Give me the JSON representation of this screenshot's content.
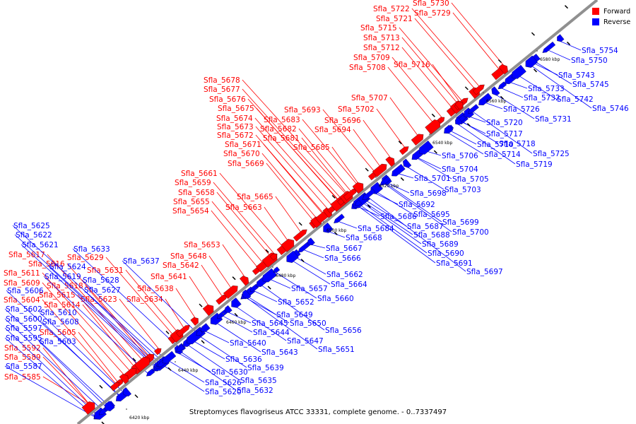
{
  "caption": "Streptomyces flavogriseus ATCC 33331, complete genome. - 0..7337497",
  "legend": [
    {
      "label": "Forward",
      "color": "#ff0000"
    },
    {
      "label": "Reverse",
      "color": "#0000ff"
    }
  ],
  "colors": {
    "forward": "#ff0000",
    "reverse": "#0000ff",
    "backbone": "#8c8c8c"
  },
  "scale_ticks": [
    {
      "label": "6420 kbp"
    },
    {
      "label": "6440 kbp"
    },
    {
      "label": "6460 kbp"
    },
    {
      "label": "6480 kbp"
    },
    {
      "label": "6500 kbp"
    },
    {
      "label": "6520 kbp"
    },
    {
      "label": "6540 kbp"
    },
    {
      "label": "6560 kbp"
    },
    {
      "label": "6580 kbp"
    }
  ],
  "forward_genes": [
    "Sfla_5585",
    "Sfla_5589",
    "Sfla_5592",
    "Sfla_5605",
    "Sfla_5614",
    "Sfla_5615",
    "Sfla_5618",
    "Sfla_5611",
    "Sfla_5609",
    "Sfla_5604",
    "Sfla_5616",
    "Sfla_5617",
    "Sfla_5623",
    "Sfla_5629",
    "Sfla_5631",
    "Sfla_5634",
    "Sfla_5638",
    "Sfla_5641",
    "Sfla_5642",
    "Sfla_5648",
    "Sfla_5653",
    "Sfla_5654",
    "Sfla_5655",
    "Sfla_5658",
    "Sfla_5659",
    "Sfla_5661",
    "Sfla_5663",
    "Sfla_5665",
    "Sfla_5669",
    "Sfla_5670",
    "Sfla_5671",
    "Sfla_5672",
    "Sfla_5673",
    "Sfla_5674",
    "Sfla_5675",
    "Sfla_5676",
    "Sfla_5677",
    "Sfla_5678",
    "Sfla_5681",
    "Sfla_5682",
    "Sfla_5683",
    "Sfla_5685",
    "Sfla_5693",
    "Sfla_5694",
    "Sfla_5696",
    "Sfla_5702",
    "Sfla_5707",
    "Sfla_5708",
    "Sfla_5709",
    "Sfla_5712",
    "Sfla_5713",
    "Sfla_5715",
    "Sfla_5716",
    "Sfla_5721",
    "Sfla_5722",
    "Sfla_5729",
    "Sfla_5730"
  ],
  "reverse_genes": [
    "Sfla_5587",
    "Sfla_5595",
    "Sfla_5597",
    "Sfla_5600",
    "Sfla_5602",
    "Sfla_5603",
    "Sfla_5606",
    "Sfla_5608",
    "Sfla_5610",
    "Sfla_5619",
    "Sfla_5621",
    "Sfla_5622",
    "Sfla_5624",
    "Sfla_5625",
    "Sfla_5627",
    "Sfla_5628",
    "Sfla_5633",
    "Sfla_5637",
    "Sfla_5620",
    "Sfla_5626",
    "Sfla_5630",
    "Sfla_5632",
    "Sfla_5635",
    "Sfla_5636",
    "Sfla_5639",
    "Sfla_5640",
    "Sfla_5643",
    "Sfla_5644",
    "Sfla_5645",
    "Sfla_5647",
    "Sfla_5649",
    "Sfla_5650",
    "Sfla_5651",
    "Sfla_5652",
    "Sfla_5656",
    "Sfla_5657",
    "Sfla_5660",
    "Sfla_5662",
    "Sfla_5664",
    "Sfla_5666",
    "Sfla_5667",
    "Sfla_5668",
    "Sfla_5684",
    "Sfla_5686",
    "Sfla_5687",
    "Sfla_5688",
    "Sfla_5689",
    "Sfla_5690",
    "Sfla_5691",
    "Sfla_5692",
    "Sfla_5695",
    "Sfla_5697",
    "Sfla_5698",
    "Sfla_5699",
    "Sfla_5700",
    "Sfla_5701",
    "Sfla_5703",
    "Sfla_5704",
    "Sfla_5705",
    "Sfla_5706",
    "Sfla_5710",
    "Sfla_5714",
    "Sfla_5717",
    "Sfla_5718",
    "Sfla_5719",
    "Sfla_5720",
    "Sfla_5725",
    "Sfla_5726",
    "Sfla_5731",
    "Sfla_5732",
    "Sfla_5733",
    "Sfla_5742",
    "Sfla_5743",
    "Sfla_5745",
    "Sfla_5746",
    "Sfla_5750",
    "Sfla_5754"
  ]
}
